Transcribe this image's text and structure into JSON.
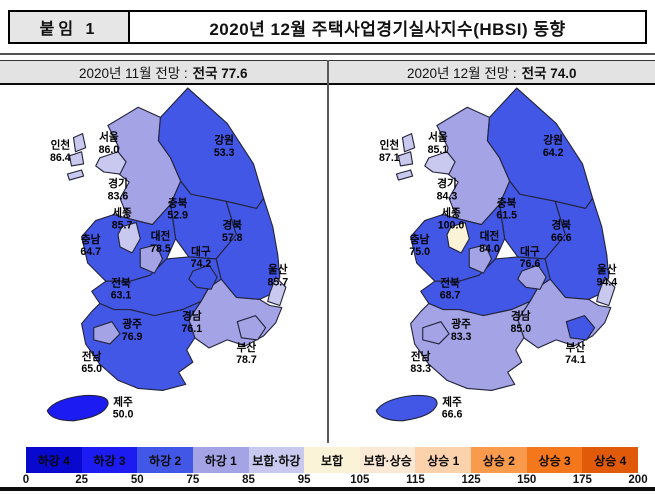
{
  "header": {
    "tag": "붙임 1",
    "title": "2020년 12월 주택사업경기실사지수(HBSI) 동향"
  },
  "panels": [
    {
      "title_prefix": "2020년 11월 전망 :",
      "title_bold": "전국 77.6",
      "national": 77.6,
      "regions": {
        "seoul": {
          "name": "서울",
          "value": "86.0"
        },
        "incheon": {
          "name": "인천",
          "value": "86.4"
        },
        "gyeonggi": {
          "name": "경기",
          "value": "83.6"
        },
        "gangwon": {
          "name": "강원",
          "value": "53.3"
        },
        "chungbuk": {
          "name": "충북",
          "value": "52.9"
        },
        "sejong": {
          "name": "세종",
          "value": "85.7"
        },
        "daejeon": {
          "name": "대전",
          "value": "78.5"
        },
        "chungnam": {
          "name": "충남",
          "value": "64.7"
        },
        "gyeongbuk": {
          "name": "경북",
          "value": "57.8"
        },
        "daegu": {
          "name": "대구",
          "value": "74.2"
        },
        "ulsan": {
          "name": "울산",
          "value": "85.7"
        },
        "jeonbuk": {
          "name": "전북",
          "value": "63.1"
        },
        "gwangju": {
          "name": "광주",
          "value": "76.9"
        },
        "gyeongnam": {
          "name": "경남",
          "value": "76.1"
        },
        "busan": {
          "name": "부산",
          "value": "78.7"
        },
        "jeonnam": {
          "name": "전남",
          "value": "65.0"
        },
        "jeju": {
          "name": "제주",
          "value": "50.0"
        }
      }
    },
    {
      "title_prefix": "2020년 12월 전망 :",
      "title_bold": "전국 74.0",
      "national": 74.0,
      "regions": {
        "seoul": {
          "name": "서울",
          "value": "85.1"
        },
        "incheon": {
          "name": "인천",
          "value": "87.1"
        },
        "gyeonggi": {
          "name": "경기",
          "value": "84.3"
        },
        "gangwon": {
          "name": "강원",
          "value": "64.2"
        },
        "chungbuk": {
          "name": "충북",
          "value": "61.5"
        },
        "sejong": {
          "name": "세종",
          "value": "100.0"
        },
        "daejeon": {
          "name": "대전",
          "value": "84.0"
        },
        "chungnam": {
          "name": "충남",
          "value": "75.0"
        },
        "gyeongbuk": {
          "name": "경북",
          "value": "66.6"
        },
        "daegu": {
          "name": "대구",
          "value": "76.6"
        },
        "ulsan": {
          "name": "울산",
          "value": "94.4"
        },
        "jeonbuk": {
          "name": "전북",
          "value": "68.7"
        },
        "gwangju": {
          "name": "광주",
          "value": "83.3"
        },
        "gyeongnam": {
          "name": "경남",
          "value": "85.0"
        },
        "busan": {
          "name": "부산",
          "value": "74.1"
        },
        "jeonnam": {
          "name": "전남",
          "value": "83.3"
        },
        "jeju": {
          "name": "제주",
          "value": "66.6"
        }
      }
    }
  ],
  "legend": {
    "bands": [
      {
        "label": "하강 4",
        "min": 0,
        "max": 25,
        "color": "#0808cf"
      },
      {
        "label": "하강 3",
        "min": 25,
        "max": 50,
        "color": "#1c1cf2"
      },
      {
        "label": "하강 2",
        "min": 50,
        "max": 75,
        "color": "#4257e6"
      },
      {
        "label": "하강 1",
        "min": 75,
        "max": 85,
        "color": "#a3a3e6"
      },
      {
        "label": "보합·하강",
        "min": 85,
        "max": 95,
        "color": "#c9c9f0"
      },
      {
        "label": "보합",
        "min": 95,
        "max": 105,
        "color": "#faf3d7"
      },
      {
        "label": "보합·상승",
        "min": 105,
        "max": 115,
        "color": "#fbe9d6"
      },
      {
        "label": "상승 1",
        "min": 115,
        "max": 125,
        "color": "#fbd2ac"
      },
      {
        "label": "상승 2",
        "min": 125,
        "max": 150,
        "color": "#f99a4d"
      },
      {
        "label": "상승 3",
        "min": 150,
        "max": 175,
        "color": "#f4771c"
      },
      {
        "label": "상승 4",
        "min": 175,
        "max": 200,
        "color": "#e15a0a"
      }
    ],
    "ticks": [
      "0",
      "25",
      "50",
      "75",
      "85",
      "95",
      "105",
      "115",
      "125",
      "150",
      "175",
      "200"
    ]
  },
  "chart_data": [
    {
      "type": "heatmap",
      "subtype": "choropleth-map-of-south-korea",
      "title": "2020년 11월 전망 : 전국 77.6",
      "national_index": 77.6,
      "regions": [
        "서울",
        "인천",
        "경기",
        "강원",
        "충북",
        "세종",
        "대전",
        "충남",
        "경북",
        "대구",
        "울산",
        "전북",
        "광주",
        "경남",
        "부산",
        "전남",
        "제주"
      ],
      "values": [
        86.0,
        86.4,
        83.6,
        53.3,
        52.9,
        85.7,
        78.5,
        64.7,
        57.8,
        74.2,
        85.7,
        63.1,
        76.9,
        76.1,
        78.7,
        65.0,
        50.0
      ],
      "scale_range": [
        0,
        200
      ],
      "scale_breaks": [
        0,
        25,
        50,
        75,
        85,
        95,
        105,
        115,
        125,
        150,
        175,
        200
      ],
      "scale_labels": [
        "하강 4",
        "하강 3",
        "하강 2",
        "하강 1",
        "보합·하강",
        "보합",
        "보합·상승",
        "상승 1",
        "상승 2",
        "상승 3",
        "상승 4"
      ],
      "legend_position": "bottom"
    },
    {
      "type": "heatmap",
      "subtype": "choropleth-map-of-south-korea",
      "title": "2020년 12월 전망 : 전국 74.0",
      "national_index": 74.0,
      "regions": [
        "서울",
        "인천",
        "경기",
        "강원",
        "충북",
        "세종",
        "대전",
        "충남",
        "경북",
        "대구",
        "울산",
        "전북",
        "광주",
        "경남",
        "부산",
        "전남",
        "제주"
      ],
      "values": [
        85.1,
        87.1,
        84.3,
        64.2,
        61.5,
        100.0,
        84.0,
        75.0,
        66.6,
        76.6,
        94.4,
        68.7,
        83.3,
        85.0,
        74.1,
        83.3,
        66.6
      ],
      "scale_range": [
        0,
        200
      ],
      "scale_breaks": [
        0,
        25,
        50,
        75,
        85,
        95,
        105,
        115,
        125,
        150,
        175,
        200
      ],
      "scale_labels": [
        "하강 4",
        "하강 3",
        "하강 2",
        "하강 1",
        "보합·하강",
        "보합",
        "보합·상승",
        "상승 1",
        "상승 2",
        "상승 3",
        "상승 4"
      ],
      "legend_position": "bottom"
    }
  ]
}
